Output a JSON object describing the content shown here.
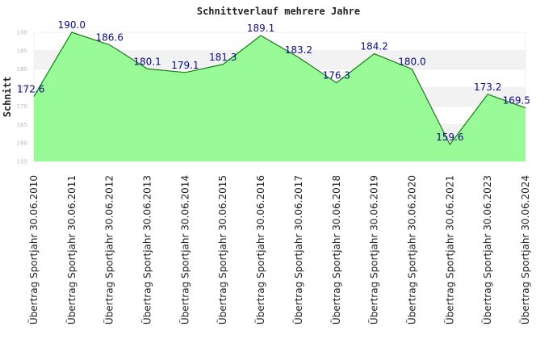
{
  "chart_data": {
    "type": "area",
    "title": "Schnittverlauf mehrere Jahre",
    "xlabel": "",
    "ylabel": "Schnitt",
    "categories": [
      "Übertrag Sportjahr 30.06.2010",
      "Übertrag Sportjahr 30.06.2011",
      "Übertrag Sportjahr 30.06.2012",
      "Übertrag Sportjahr 30.06.2013",
      "Übertrag Sportjahr 30.06.2014",
      "Übertrag Sportjahr 30.06.2015",
      "Übertrag Sportjahr 30.06.2016",
      "Übertrag Sportjahr 30.06.2017",
      "Übertrag Sportjahr 30.06.2018",
      "Übertrag Sportjahr 30.06.2019",
      "Übertrag Sportjahr 30.06.2020",
      "Übertrag Sportjahr 30.06.2021",
      "Übertrag Sportjahr 30.06.2023",
      "Übertrag Sportjahr 30.06.2024"
    ],
    "values": [
      172.6,
      190.0,
      186.6,
      180.1,
      179.1,
      181.3,
      189.1,
      183.2,
      176.3,
      184.2,
      180.0,
      159.6,
      173.2,
      169.5
    ],
    "data_labels": [
      "172.6",
      "190.0",
      "186.6",
      "180.1",
      "179.1",
      "181.3",
      "189.1",
      "183.2",
      "176.3",
      "184.2",
      "180.0",
      "159.6",
      "173.2",
      "169.5"
    ],
    "yticks": [
      155,
      160,
      165,
      170,
      175,
      180,
      185,
      190
    ],
    "ytick_labels": [
      "155",
      "160",
      "165",
      "170",
      "175",
      "180",
      "185",
      "190"
    ],
    "ylim": [
      155,
      190
    ],
    "grid": "horizontal bands",
    "legend": "none",
    "colors": {
      "fill": "#98fb98",
      "line": "#1a7a1a",
      "band": "#f2f2f2",
      "data_label": "#0a0a80",
      "tick": "#bbbbbb"
    }
  }
}
